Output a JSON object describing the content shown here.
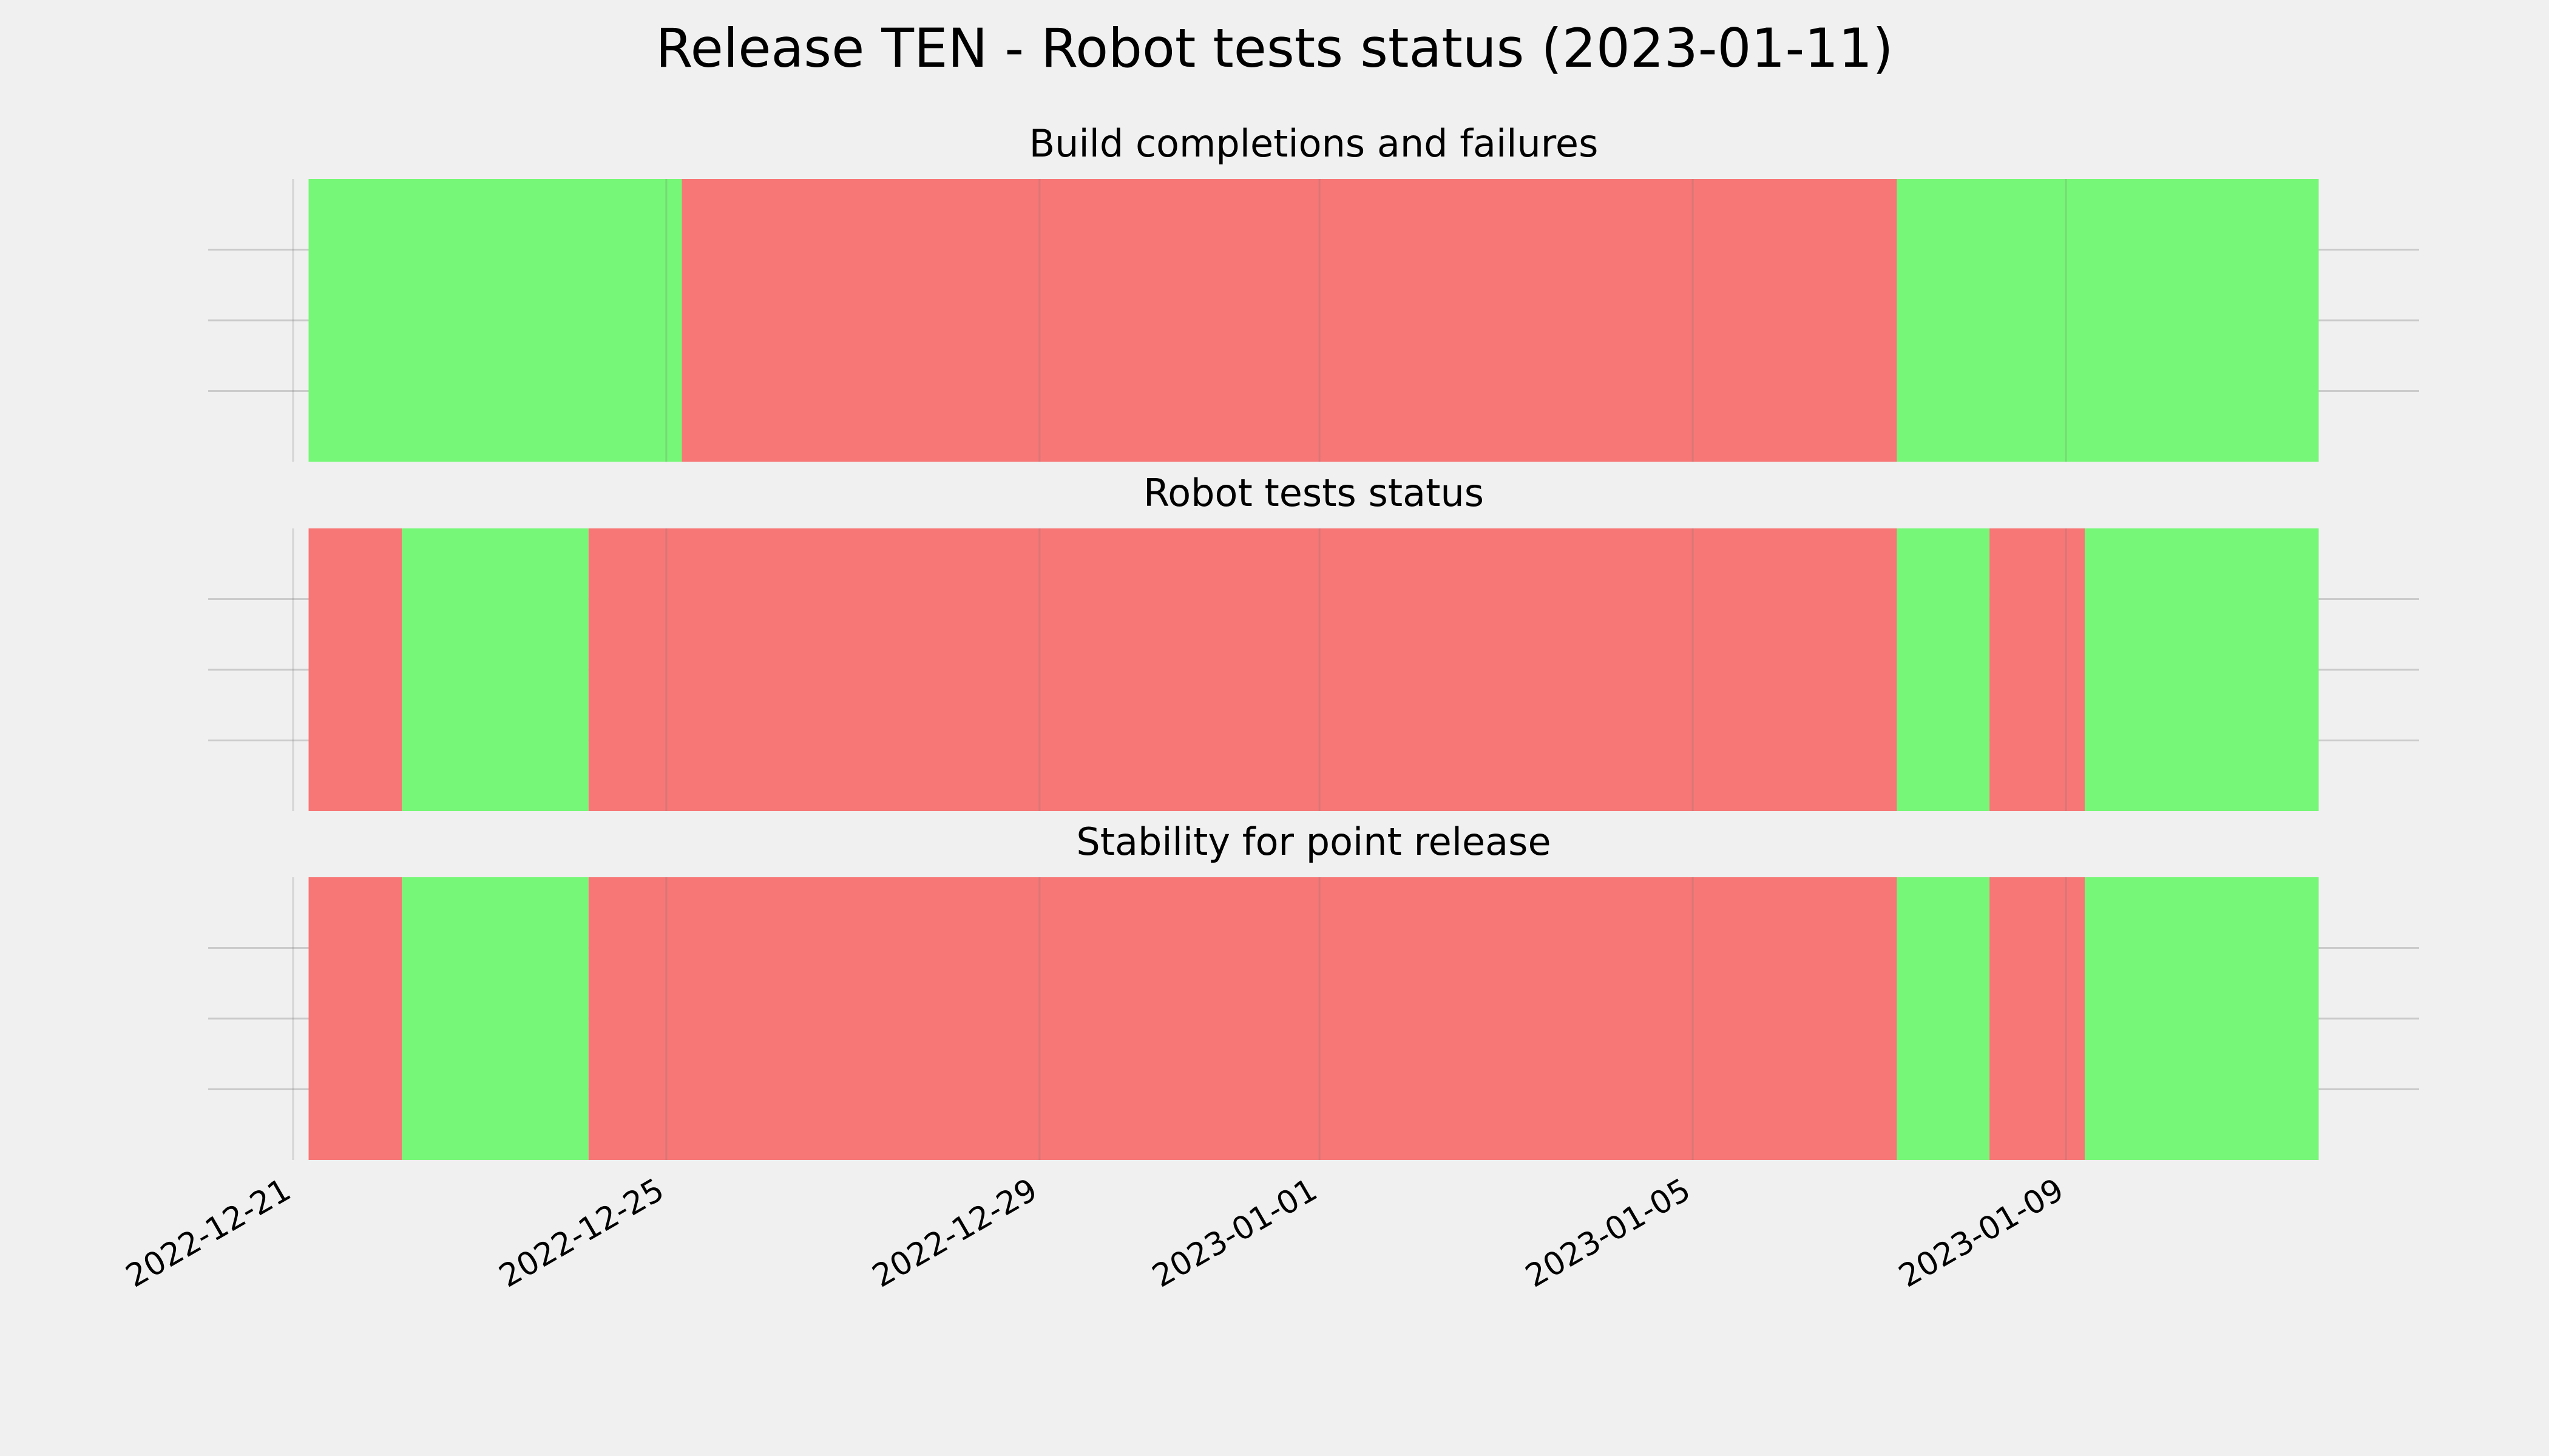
{
  "chart_data": {
    "type": "timeline",
    "title": "Release TEN - Robot tests status (2023-01-11)",
    "xlim": [
      "2022-12-20T02:10",
      "2023-01-12T18:50"
    ],
    "xticks": [
      "2022-12-21",
      "2022-12-25",
      "2022-12-29",
      "2023-01-01",
      "2023-01-05",
      "2023-01-09"
    ],
    "ylim": [
      0,
      1
    ],
    "yticks": [
      0.25,
      0.5,
      0.75
    ],
    "grid": true,
    "panels": [
      {
        "title": "Build completions and failures",
        "spans": [
          {
            "start": "2022-12-21T04:00",
            "end": "2022-12-25T04:00",
            "color": "#77f777"
          },
          {
            "start": "2022-12-25T04:00",
            "end": "2023-01-07T04:30",
            "color": "#f77777"
          },
          {
            "start": "2023-01-07T04:30",
            "end": "2023-01-11T17:00",
            "color": "#77f777"
          }
        ]
      },
      {
        "title": "Robot tests status",
        "spans": [
          {
            "start": "2022-12-21T04:00",
            "end": "2022-12-22T04:00",
            "color": "#f77777"
          },
          {
            "start": "2022-12-22T04:00",
            "end": "2022-12-24T04:00",
            "color": "#77f777"
          },
          {
            "start": "2022-12-24T04:00",
            "end": "2023-01-07T04:30",
            "color": "#f77777"
          },
          {
            "start": "2023-01-07T04:30",
            "end": "2023-01-08T04:20",
            "color": "#77f777"
          },
          {
            "start": "2023-01-08T04:20",
            "end": "2023-01-09T04:50",
            "color": "#f77777"
          },
          {
            "start": "2023-01-09T04:50",
            "end": "2023-01-11T17:00",
            "color": "#77f777"
          }
        ]
      },
      {
        "title": "Stability for point release",
        "spans": [
          {
            "start": "2022-12-21T04:00",
            "end": "2022-12-22T04:00",
            "color": "#f77777"
          },
          {
            "start": "2022-12-22T04:00",
            "end": "2022-12-24T04:00",
            "color": "#77f777"
          },
          {
            "start": "2022-12-24T04:00",
            "end": "2023-01-07T04:30",
            "color": "#f77777"
          },
          {
            "start": "2023-01-07T04:30",
            "end": "2023-01-08T04:20",
            "color": "#77f777"
          },
          {
            "start": "2023-01-08T04:20",
            "end": "2023-01-09T04:50",
            "color": "#f77777"
          },
          {
            "start": "2023-01-09T04:50",
            "end": "2023-01-11T17:00",
            "color": "#77f777"
          }
        ]
      }
    ]
  }
}
